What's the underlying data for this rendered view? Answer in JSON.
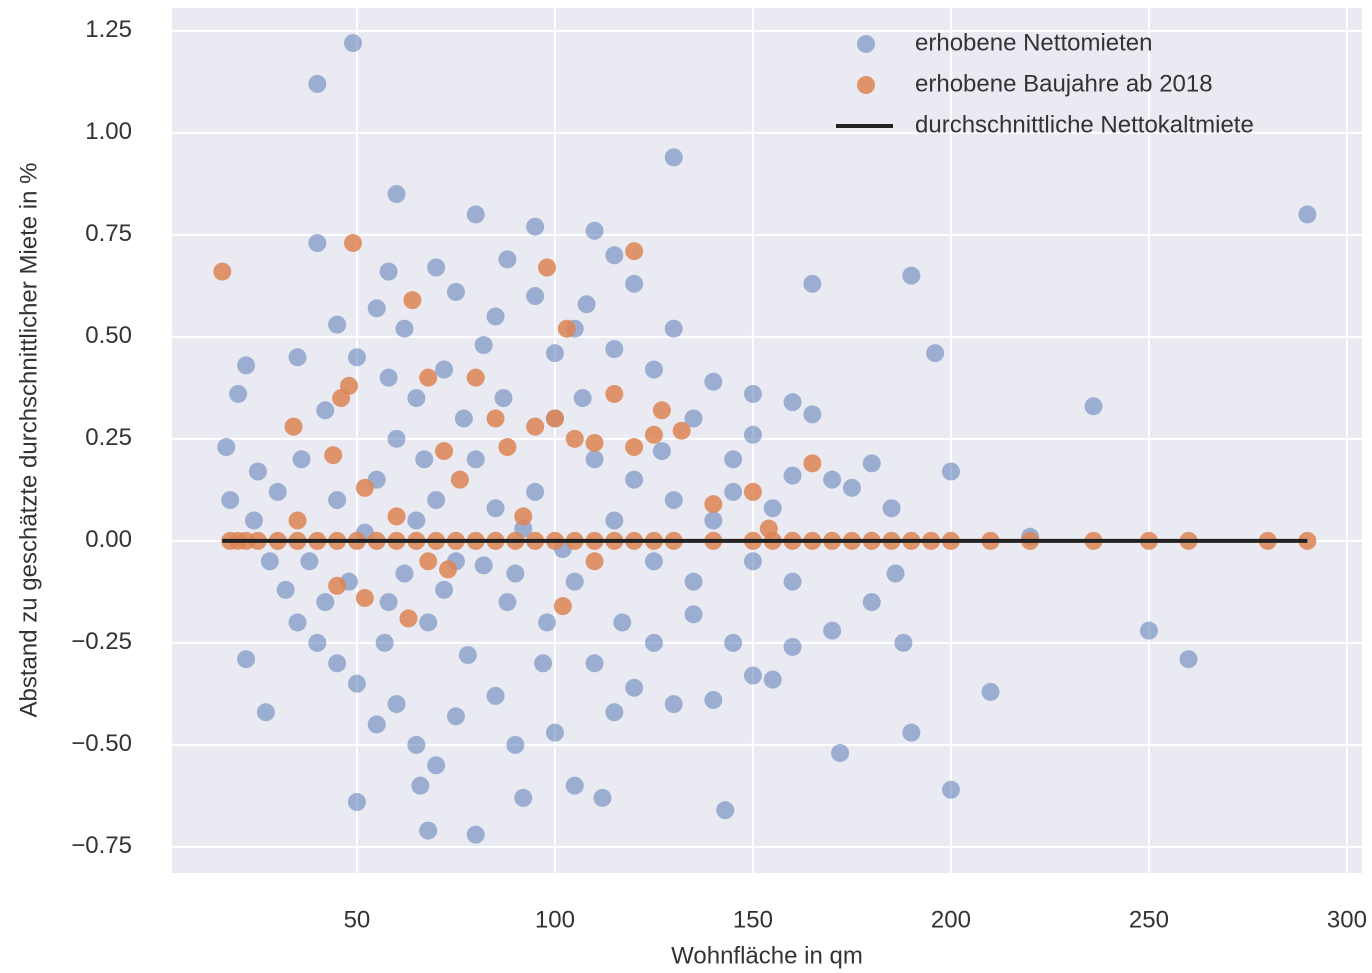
{
  "chart_data": {
    "type": "scatter",
    "xlabel": "Wohnfläche in qm",
    "ylabel": "Abstand zu geschätzte durchschnittlicher Miete in %",
    "xlim": [
      3.3,
      303.8
    ],
    "ylim": [
      -0.814,
      1.306
    ],
    "xticks": [
      50,
      100,
      150,
      200,
      250,
      300
    ],
    "yticks": [
      {
        "value": -0.75,
        "label": "−0.75"
      },
      {
        "value": -0.5,
        "label": "−0.50"
      },
      {
        "value": -0.25,
        "label": "−0.25"
      },
      {
        "value": 0,
        "label": "0.00"
      },
      {
        "value": 0.25,
        "label": "0.25"
      },
      {
        "value": 0.5,
        "label": "0.50"
      },
      {
        "value": 0.75,
        "label": "0.75"
      },
      {
        "value": 1,
        "label": "1.00"
      },
      {
        "value": 1.25,
        "label": "1.25"
      }
    ],
    "grid": true,
    "legend": "upper right",
    "series": [
      {
        "name": "erhobene Nettomieten",
        "color": "#4c72b0",
        "type": "scatter",
        "x": [
          49,
          40,
          130,
          290,
          60,
          80,
          95,
          110,
          40,
          165,
          190,
          196,
          236,
          200,
          220,
          250,
          260,
          210,
          190,
          200,
          172,
          143,
          112,
          92,
          80,
          68,
          50,
          66,
          22,
          27,
          18,
          20,
          22,
          17,
          35,
          45,
          55,
          58,
          62,
          70,
          75,
          85,
          88,
          100,
          105,
          115,
          120,
          130,
          140,
          150,
          160,
          165,
          175,
          180,
          185,
          170,
          160,
          150,
          145,
          135,
          125,
          115,
          108,
          95,
          82,
          72,
          65,
          58,
          50,
          42,
          36,
          30,
          25,
          24,
          28,
          32,
          35,
          40,
          45,
          50,
          55,
          60,
          65,
          70,
          75,
          85,
          90,
          100,
          105,
          115,
          120,
          130,
          140,
          150,
          155,
          160,
          170,
          180,
          188,
          186,
          160,
          145,
          135,
          125,
          110,
          98,
          88,
          78,
          68,
          58,
          48,
          38,
          45,
          55,
          60,
          65,
          70,
          75,
          80,
          85,
          90,
          95,
          100,
          105,
          110,
          115,
          120,
          125,
          130,
          135,
          140,
          145,
          150,
          155,
          62,
          72,
          82,
          92,
          102,
          52,
          42,
          57,
          67,
          77,
          87,
          97,
          107,
          117,
          127
        ],
        "values": [
          1.22,
          1.12,
          0.94,
          0.8,
          0.85,
          0.8,
          0.77,
          0.76,
          0.73,
          0.63,
          0.65,
          0.46,
          0.33,
          0.17,
          0.01,
          -0.22,
          -0.29,
          -0.37,
          -0.47,
          -0.61,
          -0.52,
          -0.66,
          -0.63,
          -0.63,
          -0.72,
          -0.71,
          -0.64,
          -0.6,
          -0.29,
          -0.42,
          0.1,
          0.36,
          0.43,
          0.23,
          0.45,
          0.53,
          0.57,
          0.66,
          0.52,
          0.67,
          0.61,
          0.55,
          0.69,
          0.46,
          0.52,
          0.7,
          0.63,
          0.52,
          0.39,
          0.36,
          0.34,
          0.31,
          0.13,
          0.19,
          0.08,
          0.15,
          0.16,
          0.26,
          0.2,
          0.3,
          0.42,
          0.47,
          0.58,
          0.6,
          0.48,
          0.42,
          0.35,
          0.4,
          0.45,
          0.32,
          0.2,
          0.12,
          0.17,
          0.05,
          -0.05,
          -0.12,
          -0.2,
          -0.25,
          -0.3,
          -0.35,
          -0.45,
          -0.4,
          -0.5,
          -0.55,
          -0.43,
          -0.38,
          -0.5,
          -0.47,
          -0.6,
          -0.42,
          -0.36,
          -0.4,
          -0.39,
          -0.33,
          -0.34,
          -0.26,
          -0.22,
          -0.15,
          -0.25,
          -0.08,
          -0.1,
          -0.25,
          -0.18,
          -0.25,
          -0.3,
          -0.2,
          -0.15,
          -0.28,
          -0.2,
          -0.15,
          -0.1,
          -0.05,
          0.1,
          0.15,
          0.25,
          0.05,
          0.1,
          -0.05,
          0.2,
          0.08,
          -0.08,
          0.12,
          0.3,
          -0.1,
          0.2,
          0.05,
          0.15,
          -0.05,
          0.1,
          -0.1,
          0.05,
          0.12,
          -0.05,
          0.08,
          -0.08,
          -0.12,
          -0.06,
          0.03,
          -0.02,
          0.02,
          -0.15,
          -0.25,
          0.2,
          0.3,
          0.35,
          -0.3,
          0.35,
          -0.2,
          0.22
        ]
      },
      {
        "name": "erhobene Baujahre ab 2018",
        "color": "#dd8452",
        "type": "scatter",
        "x": [
          18,
          20,
          22,
          25,
          30,
          35,
          40,
          45,
          50,
          55,
          60,
          65,
          70,
          75,
          80,
          85,
          90,
          95,
          100,
          105,
          110,
          115,
          120,
          125,
          130,
          140,
          150,
          155,
          160,
          165,
          170,
          175,
          180,
          185,
          190,
          195,
          200,
          210,
          220,
          236,
          250,
          260,
          280,
          290,
          16,
          49,
          64,
          98,
          120,
          103,
          68,
          80,
          48,
          46,
          34,
          44,
          35,
          52,
          60,
          72,
          76,
          85,
          88,
          95,
          100,
          105,
          110,
          115,
          120,
          127,
          132,
          140,
          150,
          154,
          165,
          45,
          52,
          63,
          68,
          73,
          102,
          110,
          92,
          125
        ],
        "values": [
          0,
          0,
          0,
          0,
          0,
          0,
          0,
          0,
          0,
          0,
          0,
          0,
          0,
          0,
          0,
          0,
          0,
          0,
          0,
          0,
          0,
          0,
          0,
          0,
          0,
          0,
          0,
          0,
          0,
          0,
          0,
          0,
          0,
          0,
          0,
          0,
          0,
          0,
          0,
          0,
          0,
          0,
          0,
          0,
          0.66,
          0.73,
          0.59,
          0.67,
          0.71,
          0.52,
          0.4,
          0.4,
          0.38,
          0.35,
          0.28,
          0.21,
          0.05,
          0.13,
          0.06,
          0.22,
          0.15,
          0.3,
          0.23,
          0.28,
          0.3,
          0.25,
          0.24,
          0.36,
          0.23,
          0.32,
          0.27,
          0.09,
          0.12,
          0.03,
          0.19,
          -0.11,
          -0.14,
          -0.19,
          -0.05,
          -0.07,
          -0.16,
          -0.05,
          0.06,
          0.26
        ]
      },
      {
        "name": "durchschnittliche Nettokaltmiete",
        "color": "#222222",
        "type": "line",
        "x": [
          16,
          290
        ],
        "values": [
          0,
          0
        ]
      }
    ]
  }
}
